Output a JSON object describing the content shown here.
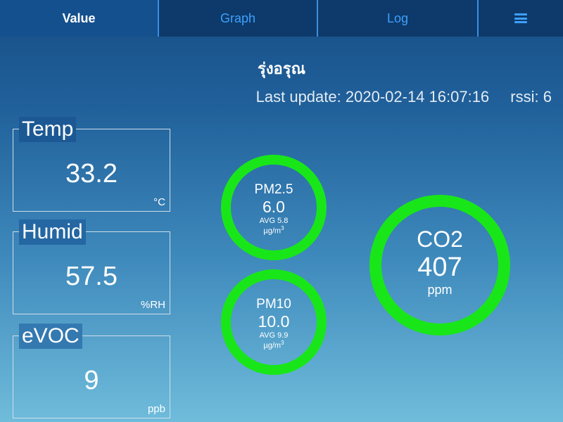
{
  "nav": {
    "tabs": [
      {
        "label": "Value"
      },
      {
        "label": "Graph"
      },
      {
        "label": "Log"
      }
    ],
    "menu_icon": "hamburger-menu-icon"
  },
  "header": {
    "site_name": "รุ่งอรุณ",
    "last_update_label": "Last update:",
    "last_update": "2020-02-14 16:07:16",
    "rssi_label": "rssi:",
    "rssi": "6"
  },
  "cards": [
    {
      "title": "Temp",
      "value": "33.2",
      "unit": "°C"
    },
    {
      "title": "Humid",
      "value": "57.5",
      "unit": "%RH"
    },
    {
      "title": "eVOC",
      "value": "9",
      "unit": "ppb"
    }
  ],
  "pm25": {
    "name": "PM2.5",
    "value": "6.0",
    "avg_label": "AVG",
    "avg": "5.8",
    "unit": "µg/m",
    "unit_sup": "3"
  },
  "pm10": {
    "name": "PM10",
    "value": "10.0",
    "avg_label": "AVG",
    "avg": "9.9",
    "unit": "µg/m",
    "unit_sup": "3"
  },
  "co2": {
    "name": "CO2",
    "value": "407",
    "unit": "ppm"
  },
  "colors": {
    "ring_good": "#19e619",
    "tab_active_text": "#ffffff",
    "tab_text": "#3ea0ff"
  }
}
